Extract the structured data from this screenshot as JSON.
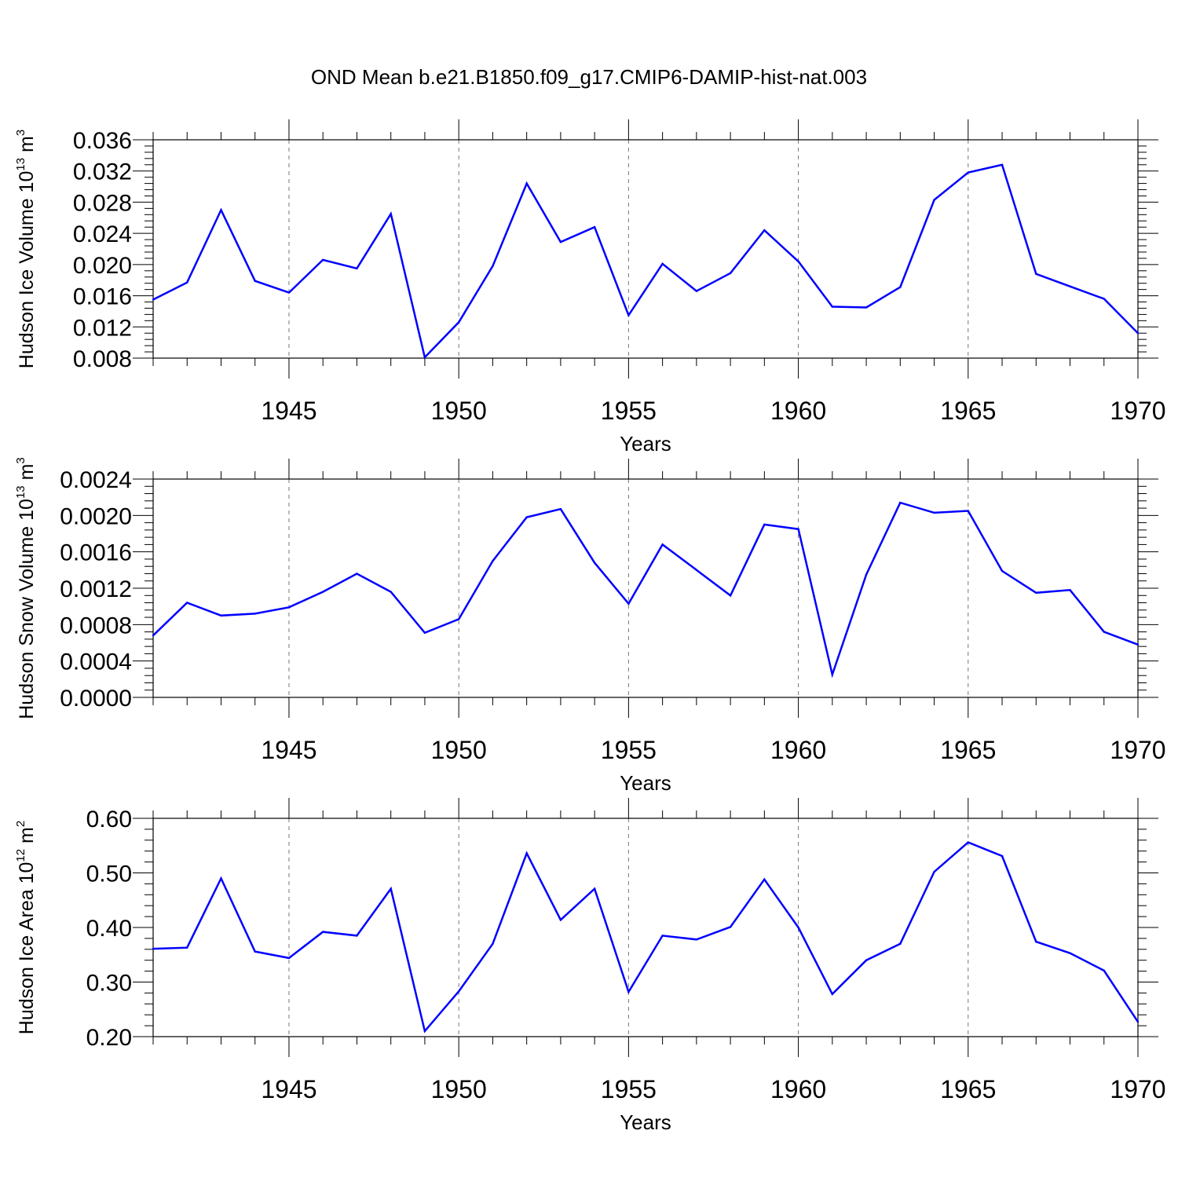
{
  "title": "OND Mean b.e21.B1850.f09_g17.CMIP6-DAMIP-hist-nat.003",
  "chart_data": [
    {
      "type": "line",
      "name": "ice-volume",
      "ylabel_main": "Hudson Ice Volume 10",
      "ylabel_exp": "13",
      "ylabel_unit": " m",
      "ylabel_unit_exp": "3",
      "xlabel": "Years",
      "xlim": [
        1941,
        1970
      ],
      "ylim": [
        0.008,
        0.036
      ],
      "yticks": [
        0.008,
        0.012,
        0.016,
        0.02,
        0.024,
        0.028,
        0.032,
        0.036
      ],
      "ytick_labels": [
        "0.008",
        "0.012",
        "0.016",
        "0.020",
        "0.024",
        "0.028",
        "0.032",
        "0.036"
      ],
      "xticks": [
        1945,
        1950,
        1955,
        1960,
        1965,
        1970
      ],
      "xtick_labels": [
        "1945",
        "1950",
        "1955",
        "1960",
        "1965",
        "1970"
      ],
      "line_color": "#0000ff",
      "x": [
        1941,
        1942,
        1943,
        1944,
        1945,
        1946,
        1947,
        1948,
        1949,
        1950,
        1951,
        1952,
        1953,
        1954,
        1955,
        1956,
        1957,
        1958,
        1959,
        1960,
        1961,
        1962,
        1963,
        1964,
        1965,
        1966,
        1967,
        1968,
        1969,
        1970
      ],
      "values": [
        0.0155,
        0.0177,
        0.027,
        0.0179,
        0.0164,
        0.0206,
        0.0195,
        0.0265,
        0.0081,
        0.0126,
        0.0198,
        0.0304,
        0.0229,
        0.0248,
        0.0135,
        0.0201,
        0.0166,
        0.0189,
        0.0244,
        0.0204,
        0.0146,
        0.0145,
        0.0171,
        0.0283,
        0.0318,
        0.0328,
        0.0188,
        0.0172,
        0.0156,
        0.0112
      ]
    },
    {
      "type": "line",
      "name": "snow-volume",
      "ylabel_main": "Hudson Snow Volume 10",
      "ylabel_exp": "13",
      "ylabel_unit": " m",
      "ylabel_unit_exp": "3",
      "xlabel": "Years",
      "xlim": [
        1941,
        1970
      ],
      "ylim": [
        0.0,
        0.0024
      ],
      "yticks": [
        0.0,
        0.0004,
        0.0008,
        0.0012,
        0.0016,
        0.002,
        0.0024
      ],
      "ytick_labels": [
        "0.0000",
        "0.0004",
        "0.0008",
        "0.0012",
        "0.0016",
        "0.0020",
        "0.0024"
      ],
      "xticks": [
        1945,
        1950,
        1955,
        1960,
        1965,
        1970
      ],
      "xtick_labels": [
        "1945",
        "1950",
        "1955",
        "1960",
        "1965",
        "1970"
      ],
      "line_color": "#0000ff",
      "x": [
        1941,
        1942,
        1943,
        1944,
        1945,
        1946,
        1947,
        1948,
        1949,
        1950,
        1951,
        1952,
        1953,
        1954,
        1955,
        1956,
        1957,
        1958,
        1959,
        1960,
        1961,
        1962,
        1963,
        1964,
        1965,
        1966,
        1967,
        1968,
        1969,
        1970
      ],
      "values": [
        0.00068,
        0.00104,
        0.0009,
        0.00092,
        0.00099,
        0.00116,
        0.00136,
        0.00116,
        0.00071,
        0.00086,
        0.0015,
        0.00198,
        0.00207,
        0.00148,
        0.00103,
        0.00168,
        0.0014,
        0.00112,
        0.0019,
        0.00185,
        0.00025,
        0.00135,
        0.00214,
        0.00203,
        0.00205,
        0.00139,
        0.00115,
        0.00118,
        0.00072,
        0.00058
      ]
    },
    {
      "type": "line",
      "name": "ice-area",
      "ylabel_main": "Hudson Ice Area 10",
      "ylabel_exp": "12",
      "ylabel_unit": " m",
      "ylabel_unit_exp": "2",
      "xlabel": "Years",
      "xlim": [
        1941,
        1970
      ],
      "ylim": [
        0.2,
        0.6
      ],
      "yticks": [
        0.2,
        0.3,
        0.4,
        0.5,
        0.6
      ],
      "ytick_labels": [
        "0.20",
        "0.30",
        "0.40",
        "0.50",
        "0.60"
      ],
      "xticks": [
        1945,
        1950,
        1955,
        1960,
        1965,
        1970
      ],
      "xtick_labels": [
        "1945",
        "1950",
        "1955",
        "1960",
        "1965",
        "1970"
      ],
      "line_color": "#0000ff",
      "x": [
        1941,
        1942,
        1943,
        1944,
        1945,
        1946,
        1947,
        1948,
        1949,
        1950,
        1951,
        1952,
        1953,
        1954,
        1955,
        1956,
        1957,
        1958,
        1959,
        1960,
        1961,
        1962,
        1963,
        1964,
        1965,
        1966,
        1967,
        1968,
        1969,
        1970
      ],
      "values": [
        0.361,
        0.363,
        0.49,
        0.356,
        0.344,
        0.392,
        0.385,
        0.471,
        0.21,
        0.283,
        0.37,
        0.536,
        0.414,
        0.471,
        0.282,
        0.385,
        0.378,
        0.401,
        0.488,
        0.4,
        0.278,
        0.34,
        0.37,
        0.502,
        0.556,
        0.531,
        0.374,
        0.353,
        0.321,
        0.227
      ]
    }
  ]
}
